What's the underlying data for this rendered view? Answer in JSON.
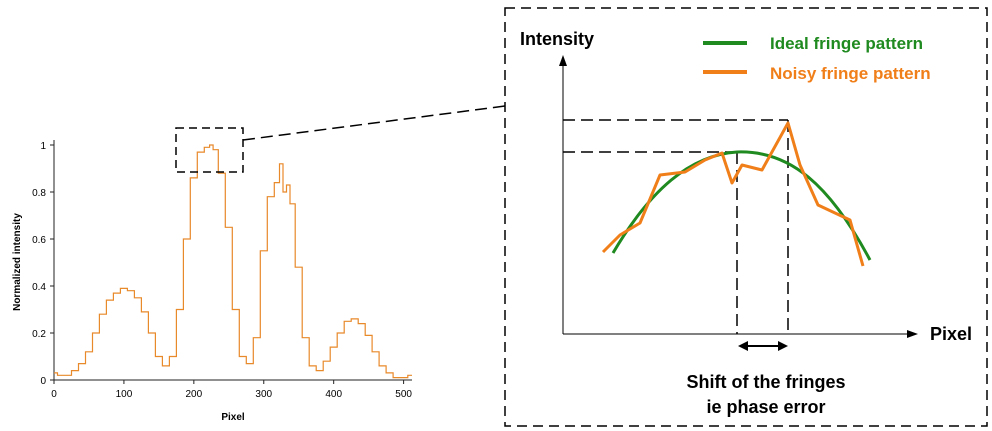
{
  "left_plot": {
    "xlabel": "Pixel",
    "ylabel": "Normalized intensity",
    "x_ticks": [
      "0",
      "100",
      "200",
      "300",
      "400",
      "500"
    ],
    "y_ticks": [
      "0",
      "0.2",
      "0.4",
      "0.6",
      "0.8",
      "1"
    ],
    "xlim": [
      0,
      512
    ],
    "ylim": [
      0,
      1
    ],
    "line_color": "#e8892a"
  },
  "right_diagram": {
    "y_axis_label": "Intensity",
    "x_axis_label": "Pixel",
    "legend": [
      {
        "label": "Ideal fringe pattern",
        "color": "#1f8a1f"
      },
      {
        "label": "Noisy fringe pattern",
        "color": "#f07f1a"
      }
    ],
    "caption_line1": "Shift of the fringes",
    "caption_line2": "ie phase error"
  },
  "chart_data": {
    "type": "line",
    "title": "",
    "xlabel": "Pixel",
    "ylabel": "Normalized intensity",
    "xlim": [
      0,
      512
    ],
    "ylim": [
      0,
      1
    ],
    "grid": false,
    "series": [
      {
        "x": [
          0,
          10,
          20,
          30,
          40,
          50,
          60,
          70,
          80,
          90,
          100,
          110,
          120,
          130,
          140,
          150,
          160,
          170,
          180,
          190,
          200,
          210,
          220,
          225,
          230,
          240,
          250,
          260,
          270,
          280,
          290,
          300,
          310,
          320,
          325,
          330,
          335,
          340,
          350,
          360,
          370,
          380,
          390,
          400,
          410,
          420,
          430,
          440,
          450,
          460,
          470,
          480,
          490,
          500,
          512
        ],
        "y": [
          0.03,
          0.02,
          0.02,
          0.04,
          0.07,
          0.12,
          0.2,
          0.28,
          0.34,
          0.37,
          0.39,
          0.38,
          0.35,
          0.29,
          0.2,
          0.1,
          0.06,
          0.1,
          0.3,
          0.6,
          0.86,
          0.97,
          0.99,
          1.0,
          0.98,
          0.88,
          0.65,
          0.3,
          0.1,
          0.07,
          0.18,
          0.55,
          0.78,
          0.84,
          0.92,
          0.8,
          0.83,
          0.75,
          0.48,
          0.18,
          0.06,
          0.04,
          0.08,
          0.14,
          0.2,
          0.25,
          0.26,
          0.24,
          0.19,
          0.12,
          0.06,
          0.03,
          0.01,
          0.01,
          0.02
        ]
      }
    ]
  }
}
